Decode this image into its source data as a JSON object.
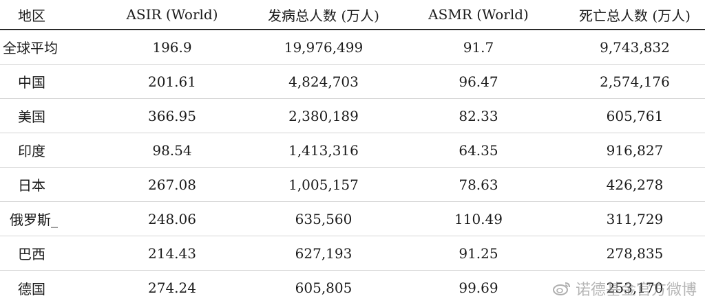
{
  "headers": [
    "地区",
    "ASIR (World)",
    "发病总人数 (万人)",
    "ASMR (World)",
    "死亡总人数 (万人)"
  ],
  "rows": [
    {
      "region": "全球平均",
      "asir": "196.9",
      "incidence": "19,976,499",
      "asmr": "91.7",
      "deaths": "9,743,832"
    },
    {
      "region": "中国",
      "asir": "201.61",
      "incidence": "4,824,703",
      "asmr": "96.47",
      "deaths": "2,574,176"
    },
    {
      "region": "美国",
      "asir": "366.95",
      "incidence": "2,380,189",
      "asmr": "82.33",
      "deaths": "605,761"
    },
    {
      "region": "印度",
      "asir": "98.54",
      "incidence": "1,413,316",
      "asmr": "64.35",
      "deaths": "916,827"
    },
    {
      "region": "日本",
      "asir": "267.08",
      "incidence": "1,005,157",
      "asmr": "78.63",
      "deaths": "426,278"
    },
    {
      "region": "俄罗斯_",
      "asir": "248.06",
      "incidence": "635,560",
      "asmr": "110.49",
      "deaths": "311,729"
    },
    {
      "region": "巴西",
      "asir": "214.43",
      "incidence": "627,193",
      "asmr": "91.25",
      "deaths": "278,835"
    },
    {
      "region": "德国",
      "asir": "274.24",
      "incidence": "605,805",
      "asmr": "99.69",
      "deaths": "253,170"
    }
  ],
  "watermark": {
    "text": "诺德基金官方微博",
    "icon": "weibo-icon"
  }
}
